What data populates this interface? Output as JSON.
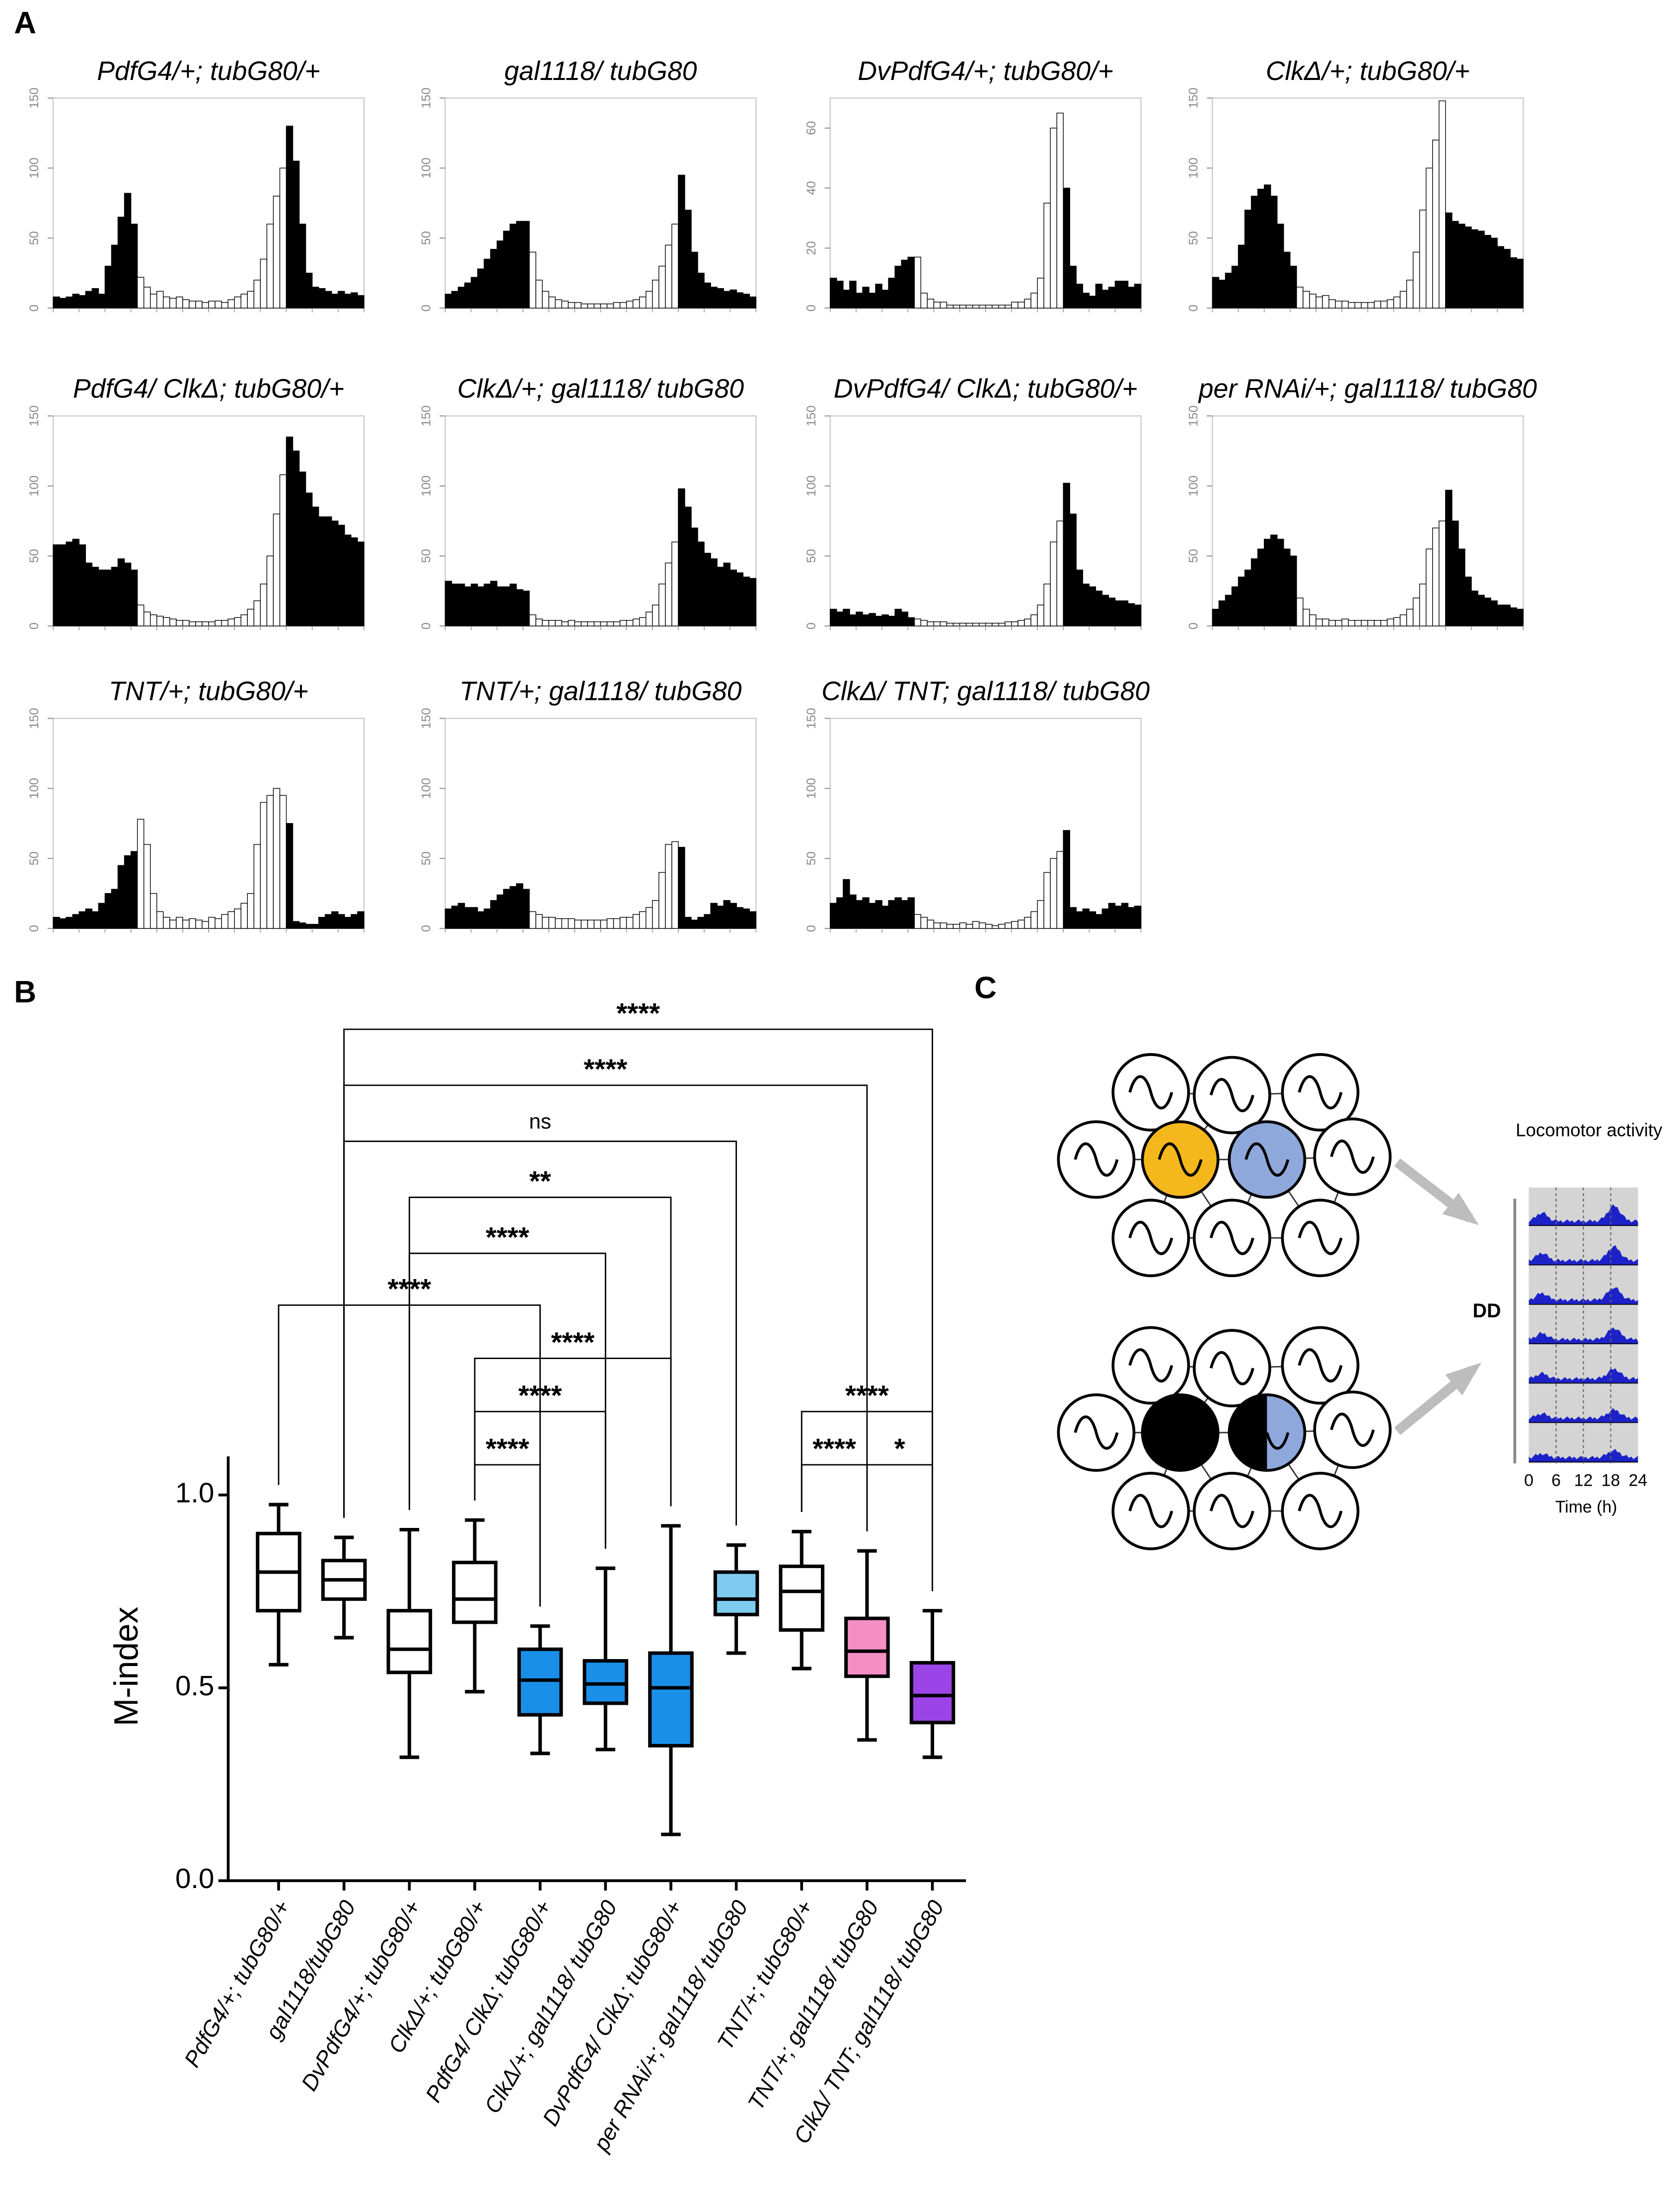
{
  "panel_labels": {
    "a": "A",
    "b": "B",
    "c": "C"
  },
  "chart_data": [
    {
      "type": "bar",
      "title": "PdfG4/+; tubG80/+",
      "ylim": [
        0,
        150
      ],
      "yticks": [
        0,
        50,
        100,
        150
      ],
      "color": "#000000",
      "anticipation_color": "#ffffff",
      "values": [
        8,
        7,
        8,
        10,
        9,
        12,
        14,
        10,
        30,
        45,
        65,
        82,
        60,
        22,
        15,
        10,
        12,
        8,
        7,
        8,
        6,
        5,
        5,
        4,
        5,
        5,
        4,
        6,
        8,
        10,
        12,
        20,
        35,
        60,
        80,
        100,
        130,
        105,
        60,
        25,
        15,
        14,
        12,
        10,
        12,
        10,
        11,
        9
      ]
    },
    {
      "type": "bar",
      "title": "gal1118/ tubG80",
      "ylim": [
        0,
        150
      ],
      "yticks": [
        0,
        50,
        100,
        150
      ],
      "color": "#000000",
      "anticipation_color": "#ffffff",
      "values": [
        10,
        12,
        15,
        18,
        22,
        28,
        35,
        42,
        48,
        55,
        60,
        62,
        62,
        40,
        20,
        12,
        8,
        6,
        5,
        4,
        4,
        3,
        3,
        3,
        3,
        3,
        4,
        4,
        5,
        6,
        8,
        12,
        20,
        30,
        45,
        60,
        95,
        70,
        40,
        25,
        18,
        15,
        14,
        12,
        13,
        11,
        10,
        8
      ]
    },
    {
      "type": "bar",
      "title": "DvPdfG4/+; tubG80/+",
      "ylim": [
        0,
        70
      ],
      "yticks": [
        0,
        20,
        40,
        60
      ],
      "color": "#000000",
      "anticipation_color": "#ffffff",
      "values": [
        10,
        9,
        6,
        9,
        5,
        7,
        5,
        8,
        6,
        10,
        14,
        16,
        17,
        17,
        5,
        3,
        2,
        2,
        1,
        1,
        1,
        1,
        1,
        1,
        1,
        1,
        1,
        1,
        2,
        2,
        3,
        5,
        10,
        35,
        60,
        65,
        40,
        14,
        8,
        5,
        4,
        8,
        6,
        7,
        9,
        9,
        7,
        8
      ]
    },
    {
      "type": "bar",
      "title": "ClkΔ/+; tubG80/+",
      "ylim": [
        0,
        150
      ],
      "yticks": [
        0,
        50,
        100,
        150
      ],
      "color": "#000000",
      "anticipation_color": "#ffffff",
      "values": [
        22,
        20,
        25,
        30,
        45,
        70,
        80,
        85,
        88,
        80,
        60,
        40,
        30,
        15,
        12,
        10,
        8,
        9,
        6,
        5,
        5,
        4,
        4,
        4,
        4,
        5,
        5,
        6,
        8,
        12,
        20,
        40,
        70,
        100,
        120,
        148,
        68,
        62,
        60,
        58,
        56,
        55,
        52,
        50,
        44,
        42,
        36,
        35
      ]
    },
    {
      "type": "bar",
      "title": "PdfG4/ ClkΔ; tubG80/+",
      "ylim": [
        0,
        150
      ],
      "yticks": [
        0,
        50,
        100,
        150
      ],
      "color": "#000000",
      "anticipation_color": "#ffffff",
      "values": [
        58,
        58,
        60,
        62,
        58,
        45,
        42,
        40,
        40,
        42,
        48,
        45,
        40,
        15,
        10,
        8,
        7,
        6,
        5,
        4,
        4,
        3,
        3,
        3,
        3,
        4,
        4,
        5,
        6,
        8,
        12,
        18,
        30,
        50,
        80,
        108,
        135,
        125,
        110,
        95,
        85,
        78,
        78,
        75,
        72,
        65,
        63,
        60
      ]
    },
    {
      "type": "bar",
      "title": "ClkΔ/+; gal1118/ tubG80",
      "ylim": [
        0,
        150
      ],
      "yticks": [
        0,
        50,
        100,
        150
      ],
      "color": "#000000",
      "anticipation_color": "#ffffff",
      "values": [
        32,
        30,
        30,
        28,
        30,
        28,
        30,
        32,
        28,
        28,
        30,
        26,
        25,
        8,
        5,
        4,
        4,
        4,
        3,
        4,
        3,
        3,
        3,
        3,
        3,
        3,
        3,
        4,
        4,
        5,
        6,
        10,
        15,
        30,
        45,
        60,
        98,
        85,
        70,
        60,
        52,
        48,
        42,
        45,
        40,
        38,
        35,
        34
      ]
    },
    {
      "type": "bar",
      "title": "DvPdfG4/ ClkΔ; tubG80/+",
      "ylim": [
        0,
        150
      ],
      "yticks": [
        0,
        50,
        100,
        150
      ],
      "color": "#000000",
      "anticipation_color": "#ffffff",
      "values": [
        12,
        10,
        12,
        8,
        10,
        8,
        9,
        7,
        8,
        7,
        12,
        10,
        6,
        5,
        4,
        3,
        3,
        3,
        2,
        2,
        2,
        2,
        2,
        2,
        2,
        2,
        2,
        3,
        3,
        4,
        5,
        8,
        15,
        30,
        60,
        75,
        102,
        80,
        40,
        30,
        28,
        25,
        22,
        20,
        18,
        18,
        16,
        15
      ]
    },
    {
      "type": "bar",
      "title": "per RNAi/+; gal1118/ tubG80",
      "ylim": [
        0,
        150
      ],
      "yticks": [
        0,
        50,
        100,
        150
      ],
      "color": "#000000",
      "anticipation_color": "#ffffff",
      "values": [
        12,
        18,
        22,
        28,
        35,
        40,
        48,
        55,
        62,
        65,
        62,
        55,
        50,
        20,
        12,
        8,
        5,
        5,
        4,
        4,
        5,
        4,
        4,
        4,
        4,
        4,
        4,
        5,
        6,
        8,
        12,
        20,
        30,
        55,
        70,
        75,
        97,
        75,
        55,
        35,
        25,
        22,
        20,
        18,
        15,
        15,
        13,
        12
      ]
    },
    {
      "type": "bar",
      "title": "TNT/+; tubG80/+",
      "ylim": [
        0,
        150
      ],
      "yticks": [
        0,
        50,
        100,
        150
      ],
      "color": "#000000",
      "anticipation_color": "#ffffff",
      "values": [
        8,
        7,
        8,
        10,
        12,
        14,
        12,
        18,
        25,
        28,
        45,
        52,
        55,
        78,
        60,
        25,
        12,
        8,
        6,
        8,
        6,
        7,
        6,
        5,
        8,
        7,
        10,
        12,
        14,
        18,
        25,
        60,
        90,
        95,
        100,
        95,
        75,
        5,
        4,
        3,
        3,
        8,
        10,
        12,
        10,
        8,
        10,
        12
      ]
    },
    {
      "type": "bar",
      "title": "TNT/+; gal1118/ tubG80",
      "ylim": [
        0,
        150
      ],
      "yticks": [
        0,
        50,
        100,
        150
      ],
      "color": "#000000",
      "anticipation_color": "#ffffff",
      "values": [
        14,
        16,
        18,
        15,
        15,
        12,
        14,
        20,
        24,
        28,
        30,
        32,
        28,
        12,
        10,
        8,
        8,
        7,
        7,
        7,
        6,
        6,
        6,
        6,
        6,
        7,
        7,
        8,
        8,
        10,
        12,
        15,
        20,
        40,
        60,
        62,
        58,
        8,
        6,
        8,
        10,
        18,
        16,
        20,
        18,
        15,
        14,
        12
      ]
    },
    {
      "type": "bar",
      "title": "ClkΔ/ TNT; gal1118/ tubG80",
      "ylim": [
        0,
        150
      ],
      "yticks": [
        0,
        50,
        100,
        150
      ],
      "color": "#000000",
      "anticipation_color": "#ffffff",
      "values": [
        18,
        22,
        35,
        24,
        20,
        22,
        18,
        20,
        16,
        20,
        22,
        20,
        22,
        10,
        8,
        6,
        4,
        4,
        3,
        3,
        4,
        3,
        5,
        4,
        3,
        2,
        3,
        4,
        5,
        6,
        8,
        12,
        20,
        40,
        50,
        55,
        70,
        15,
        12,
        14,
        12,
        10,
        14,
        18,
        16,
        18,
        15,
        16
      ]
    },
    {
      "type": "box",
      "y_label": "M-index",
      "ylim": [
        0,
        1.1
      ],
      "yticks": [
        {
          "value": 0,
          "label": "0.0"
        },
        {
          "value": 0.5,
          "label": "0.5"
        },
        {
          "value": 1,
          "label": "1.0"
        }
      ],
      "categories": [
        "PdfG4/+; tubG80/+",
        "gal1118/tubG80",
        "DvPdfG4/+; tubG80/+",
        "ClkΔ/+; tubG80/+",
        "PdfG4/ ClkΔ; tubG80/+",
        "ClkΔ/+; gal1118/ tubG80",
        "DvPdfG4/ ClkΔ; tubG80/+",
        "per RNAi/+; gal1118/ tubG80",
        "TNT/+; tubG80/+",
        "TNT/+; gal1118/ tubG80",
        "ClkΔ/ TNT; gal1118/ tubG80"
      ],
      "boxes": [
        {
          "min": 0.56,
          "q1": 0.7,
          "median": 0.8,
          "q3": 0.9,
          "max": 0.975,
          "color": "#ffffff"
        },
        {
          "min": 0.63,
          "q1": 0.73,
          "median": 0.78,
          "q3": 0.83,
          "max": 0.89,
          "color": "#ffffff"
        },
        {
          "min": 0.32,
          "q1": 0.54,
          "median": 0.6,
          "q3": 0.7,
          "max": 0.91,
          "color": "#ffffff"
        },
        {
          "min": 0.49,
          "q1": 0.67,
          "median": 0.73,
          "q3": 0.825,
          "max": 0.935,
          "color": "#ffffff"
        },
        {
          "min": 0.33,
          "q1": 0.43,
          "median": 0.52,
          "q3": 0.6,
          "max": 0.66,
          "color": "#1a8fe8"
        },
        {
          "min": 0.34,
          "q1": 0.46,
          "median": 0.51,
          "q3": 0.57,
          "max": 0.81,
          "color": "#1a8fe8"
        },
        {
          "min": 0.12,
          "q1": 0.35,
          "median": 0.5,
          "q3": 0.59,
          "max": 0.92,
          "color": "#1a8fe8"
        },
        {
          "min": 0.59,
          "q1": 0.69,
          "median": 0.73,
          "q3": 0.8,
          "max": 0.87,
          "color": "#7ecbf0"
        },
        {
          "min": 0.55,
          "q1": 0.65,
          "median": 0.75,
          "q3": 0.815,
          "max": 0.905,
          "color": "#ffffff"
        },
        {
          "min": 0.365,
          "q1": 0.53,
          "median": 0.595,
          "q3": 0.68,
          "max": 0.855,
          "color": "#f48fc6"
        },
        {
          "min": 0.32,
          "q1": 0.41,
          "median": 0.48,
          "q3": 0.565,
          "max": 0.7,
          "color": "#9b44e8"
        }
      ],
      "comparisons": [
        {
          "from": 1,
          "to": 10,
          "label": "****"
        },
        {
          "from": 1,
          "to": 9,
          "label": "****"
        },
        {
          "from": 1,
          "to": 7,
          "label": "ns"
        },
        {
          "from": 2,
          "to": 6,
          "label": "**"
        },
        {
          "from": 2,
          "to": 5,
          "label": "****"
        },
        {
          "from": 0,
          "to": 4,
          "label": "****"
        },
        {
          "from": 3,
          "to": 6,
          "label": "****"
        },
        {
          "from": 3,
          "to": 5,
          "label": "****"
        },
        {
          "from": 3,
          "to": 4,
          "label": "****"
        },
        {
          "from": 8,
          "to": 10,
          "label": "****"
        },
        {
          "from": 8,
          "to": 9,
          "label": "****"
        },
        {
          "from": 9,
          "to": 10,
          "label": "*"
        }
      ]
    }
  ],
  "diagram": {
    "title": "Locomotor activity",
    "condition": "DD",
    "xticks": [
      0,
      6,
      12,
      18,
      24
    ],
    "xlabel": "Time (h)"
  }
}
